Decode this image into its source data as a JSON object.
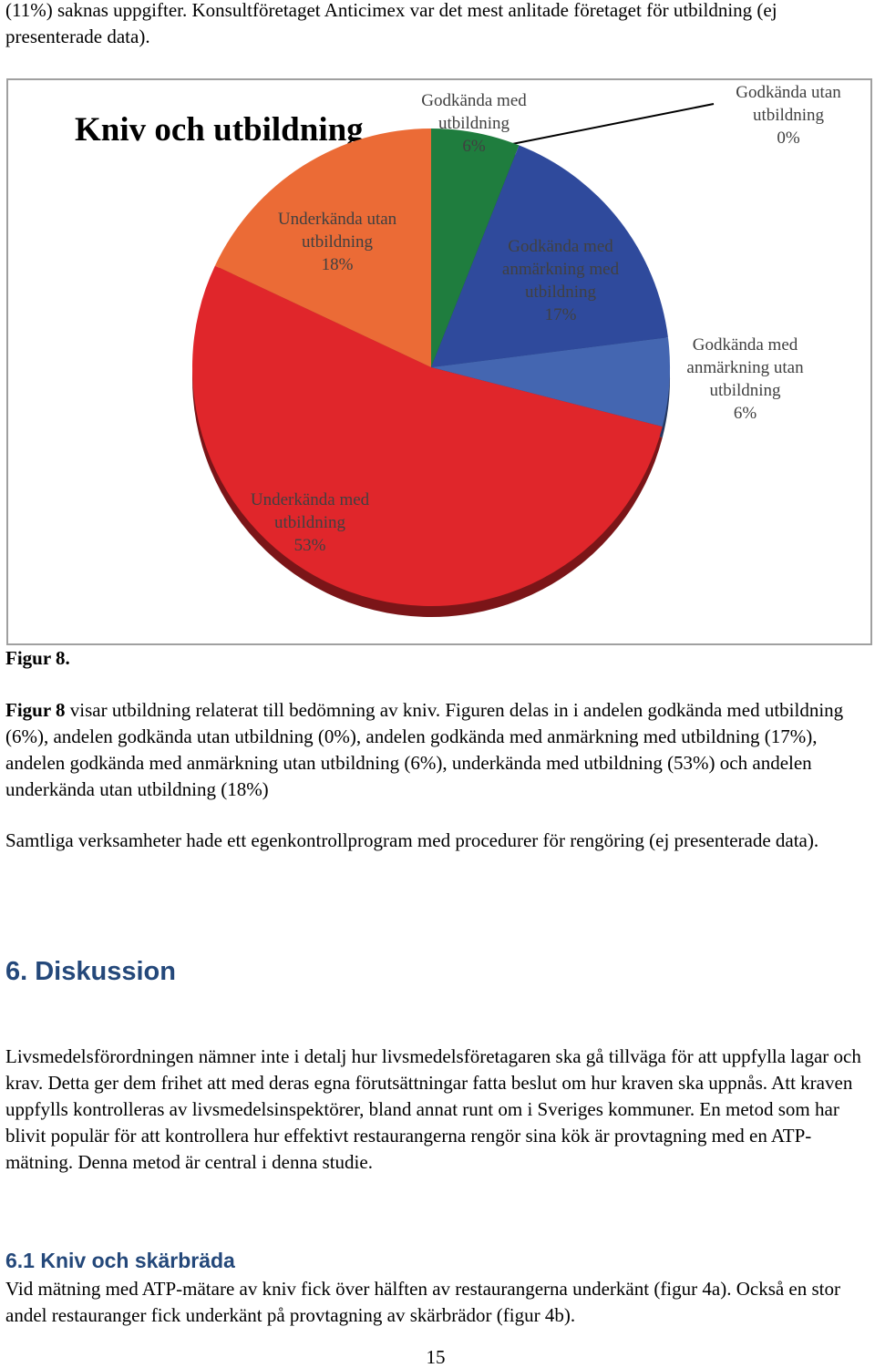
{
  "intro": "(11%) saknas uppgifter. Konsultföretaget Anticimex var det mest anlitade företaget för utbildning (ej presenterade data).",
  "chart_data": {
    "type": "pie",
    "title": "Kniv och utbildning",
    "categories": [
      "Godkända med utbildning",
      "Godkända utan utbildning",
      "Godkända med anmärkning med utbildning",
      "Godkända med anmärkning utan utbildning",
      "Underkända med utbildning",
      "Underkända utan utbildning"
    ],
    "values": [
      6,
      0,
      17,
      6,
      53,
      18
    ],
    "value_labels": [
      "6%",
      "0%",
      "17%",
      "6%",
      "53%",
      "18%"
    ],
    "colors": [
      "#1f7d3e",
      "#7f7f7f",
      "#2f4a9c",
      "#4466b1",
      "#e0262b",
      "#eb6b36"
    ]
  },
  "figure_caption": "Figur 8.",
  "figure_text": {
    "lead": "Figur 8",
    "body": "visar utbildning relaterat till bedömning av kniv. Figuren delas in i andelen godkända med utbildning (6%), andelen godkända utan utbildning (0%), andelen godkända med anmärkning med utbildning (17%), andelen godkända med anmärkning utan utbildning (6%), underkända med utbildning (53%) och andelen underkända utan utbildning (18%)"
  },
  "paragraph_2": "Samtliga verksamheter hade ett egenkontrollprogram med procedurer för rengöring (ej presenterade data).",
  "section": {
    "heading": "6. Diskussion",
    "body": "Livsmedelsförordningen nämner inte i detalj hur livsmedelsföretagaren ska gå tillväga för att uppfylla lagar och krav. Detta ger dem frihet att med deras egna förutsättningar fatta beslut om hur kraven ska uppnås. Att kraven uppfylls kontrolleras av livsmedelsinspektörer, bland annat runt om i Sveriges kommuner. En metod som har blivit populär för att kontrollera hur effektivt restaurangerna rengör sina kök är provtagning med en ATP-mätning. Denna metod är central i denna studie."
  },
  "subsection": {
    "heading": "6.1 Kniv och skärbräda",
    "body": "Vid mätning med ATP-mätare av kniv fick över hälften av restaurangerna underkänt (figur 4a). Också en stor andel restauranger fick underkänt på provtagning av skärbrädor (figur 4b)."
  },
  "page_number": "15"
}
